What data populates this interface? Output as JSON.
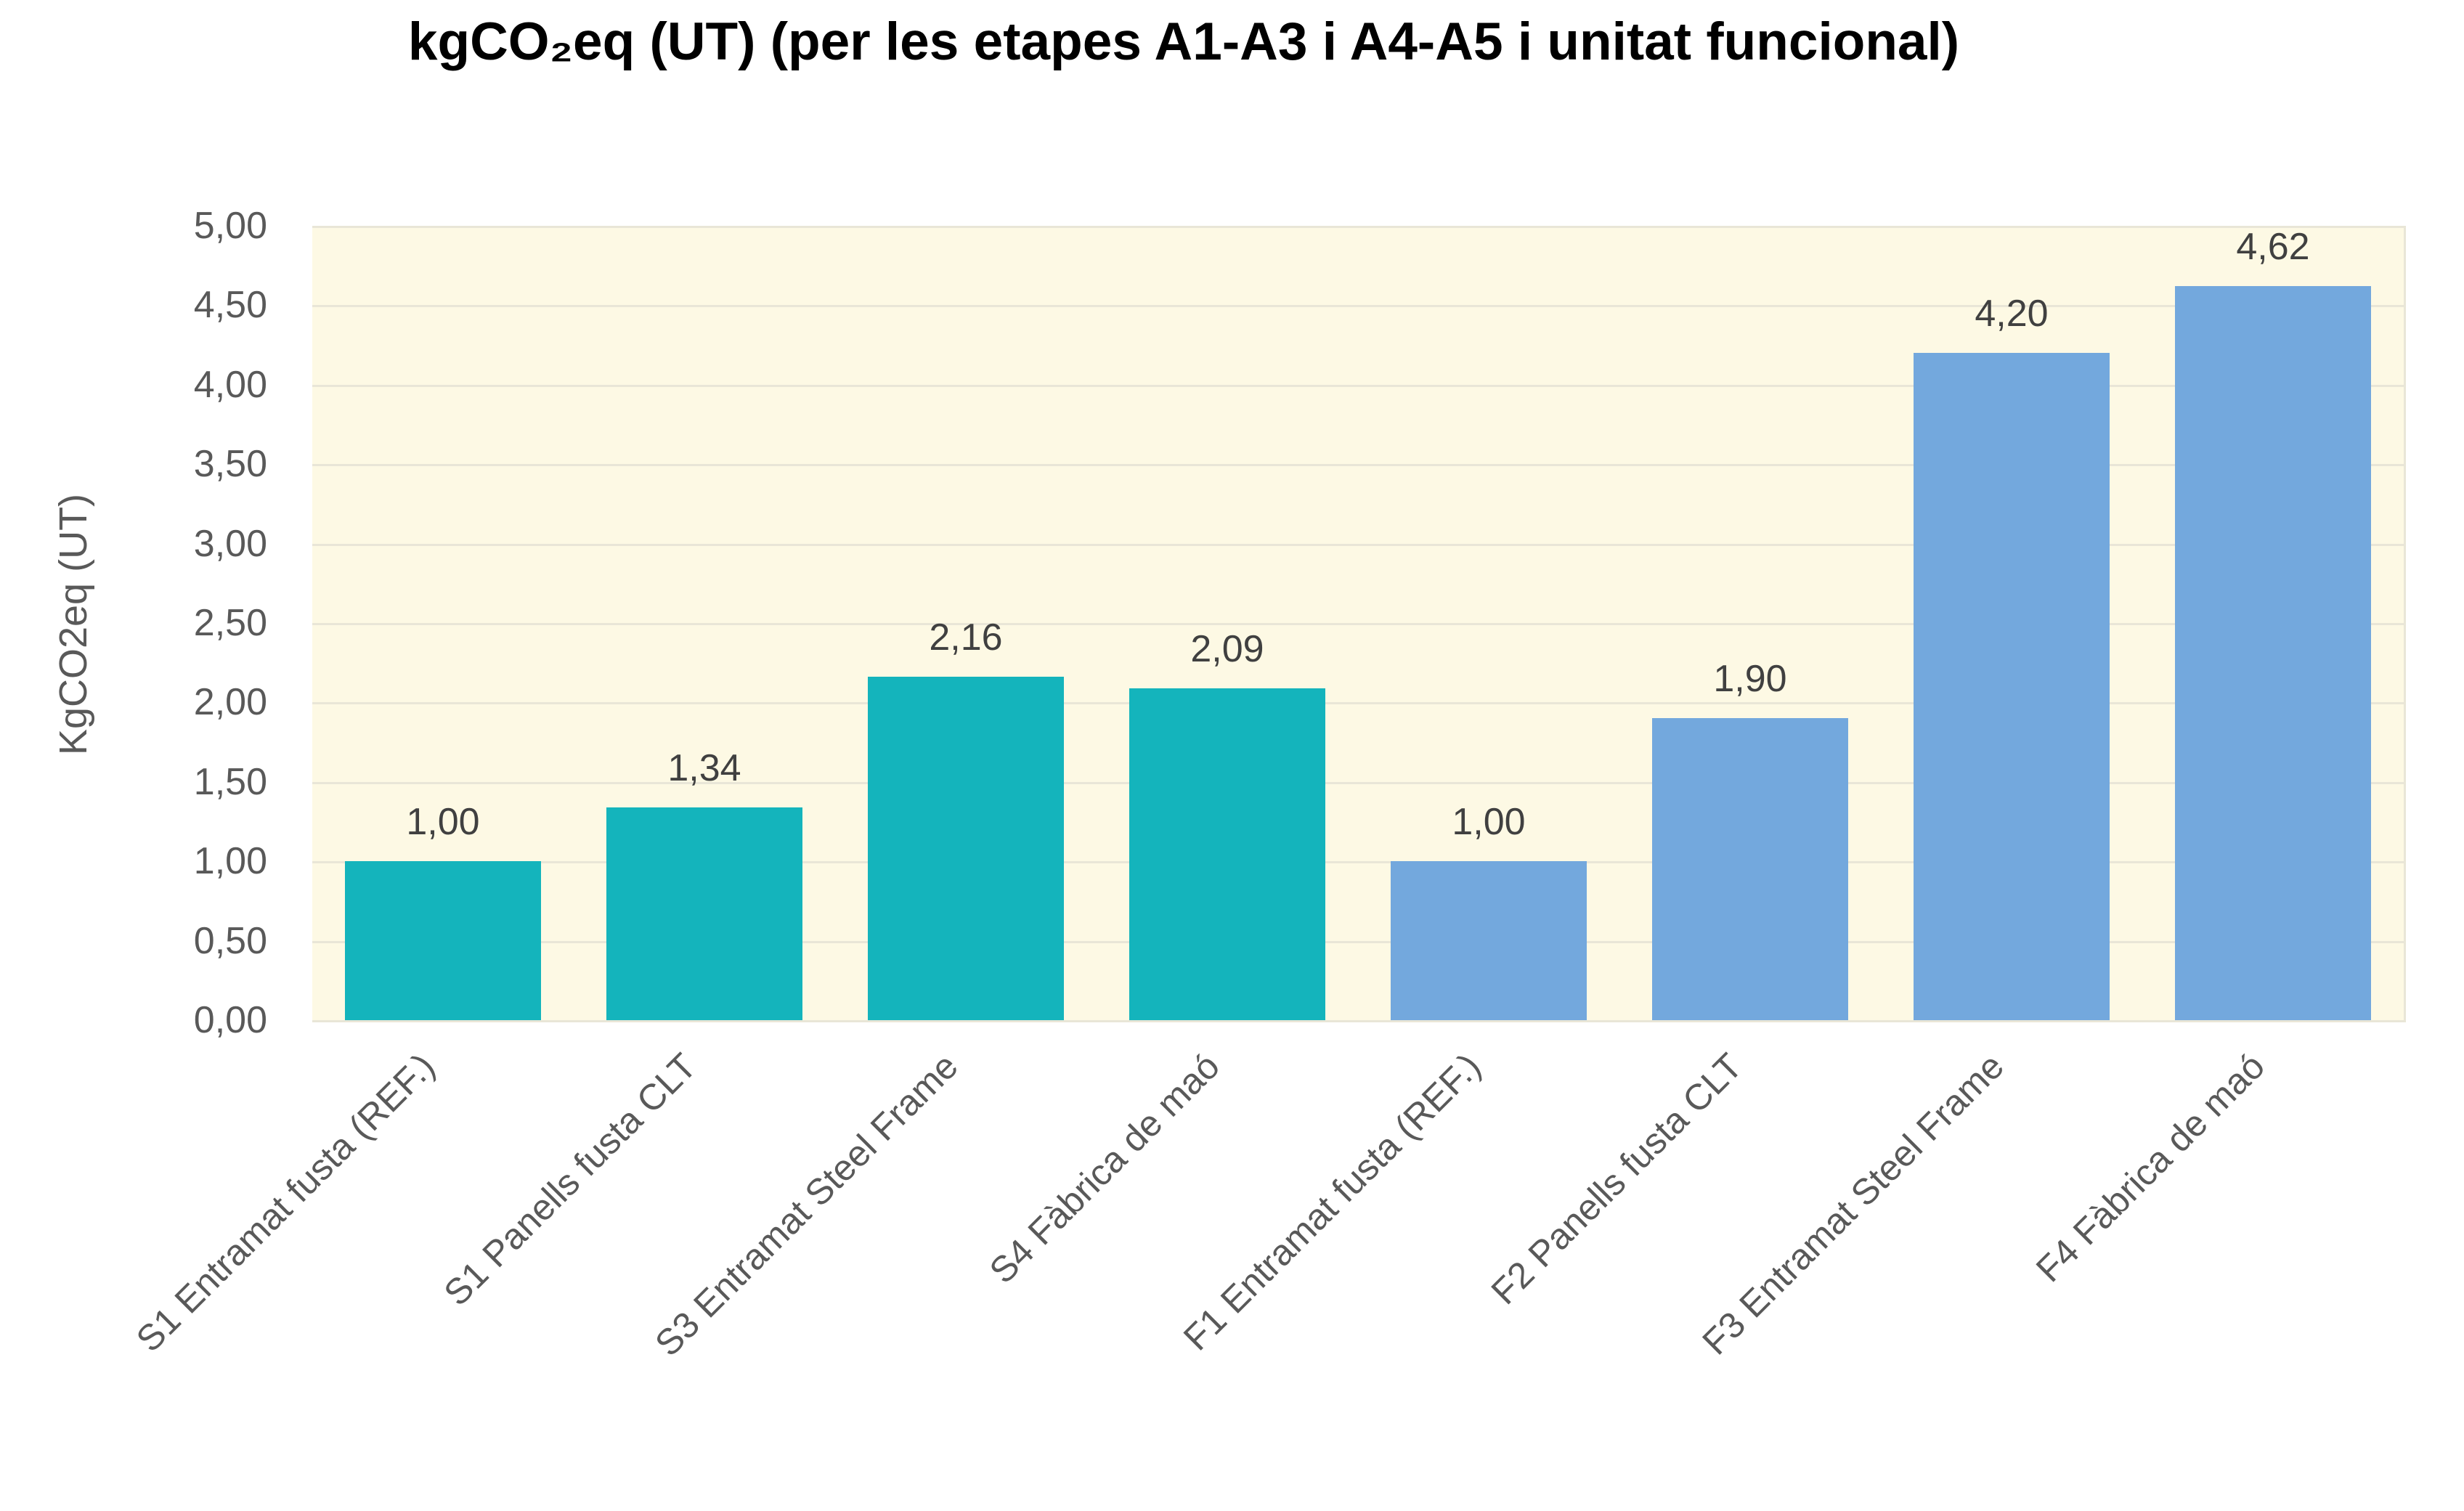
{
  "title": "kgCO₂eq (UT) (per les etapes A1-A3 i A4-A5 i unitat funcional)",
  "colors": {
    "s_series_teal": "#14B4BC",
    "f_series_blue": "#73A8DD",
    "plot_background": "#FDF9E4",
    "gridline": "#E9E6D7",
    "axis_text": "#595959",
    "value_label_text": "#404040",
    "title_text": "#000000",
    "page_background": "#FFFFFF"
  },
  "chart_data": {
    "type": "bar",
    "title": "kgCO₂eq (UT) (per les etapes A1-A3 i A4-A5 i unitat funcional)",
    "xlabel": "",
    "ylabel": "KgCO2eq (UT)",
    "ylim": [
      0,
      5
    ],
    "ytick_step": 0.5,
    "ytick_labels": [
      "0,00",
      "0,50",
      "1,00",
      "1,50",
      "2,00",
      "2,50",
      "3,00",
      "3,50",
      "4,00",
      "4,50",
      "5,00"
    ],
    "grid": "horizontal",
    "legend_position": "none",
    "categories": [
      "S1 Entramat fusta (REF.)",
      "S1 Panells fusta CLT",
      "S3  Entramat Steel Frame",
      "S4  Fàbrica de maó",
      "F1 Entramat fusta (REF.)",
      "F2 Panells fusta CLT",
      "F3 Entramat Steel Frame",
      "F4  Fàbrica de maó"
    ],
    "values": [
      1.0,
      1.34,
      2.16,
      2.09,
      1.0,
      1.9,
      4.2,
      4.62
    ],
    "value_labels": [
      "1,00",
      "1,34",
      "2,16",
      "2,09",
      "1,00",
      "1,90",
      "4,20",
      "4,62"
    ],
    "bar_colors": [
      "#14B4BC",
      "#14B4BC",
      "#14B4BC",
      "#14B4BC",
      "#73A8DD",
      "#73A8DD",
      "#73A8DD",
      "#73A8DD"
    ]
  }
}
